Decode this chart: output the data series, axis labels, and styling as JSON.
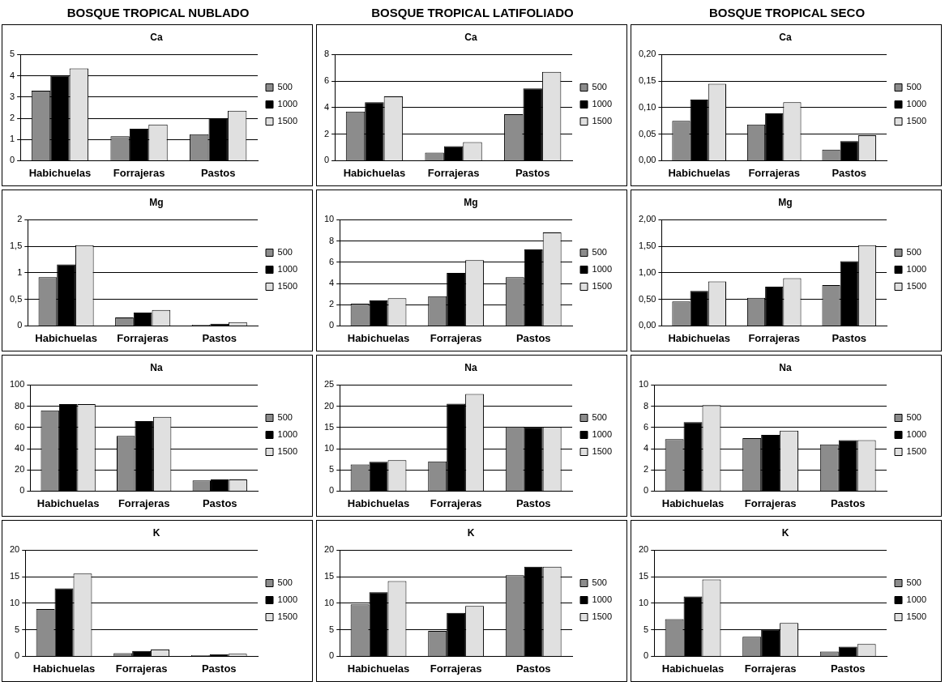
{
  "chart_data": [
    {
      "type": "bar",
      "title": "Ca",
      "annotations": [
        "BOSQUE TROPICAL NUBLADO"
      ],
      "categories": [
        "Habichuelas",
        "Forrajeras",
        "Pastos"
      ],
      "ylim": [
        0,
        5
      ],
      "yticks": [
        0,
        1,
        2,
        3,
        4,
        5
      ],
      "grid": "y",
      "legend": "right",
      "series": [
        {
          "name": "500",
          "color": "#8c8c8c",
          "values": [
            3.3,
            1.15,
            1.25
          ]
        },
        {
          "name": "1000",
          "color": "#000000",
          "values": [
            4.0,
            1.5,
            2.0
          ]
        },
        {
          "name": "1500",
          "color": "#e0e0e0",
          "values": [
            4.35,
            1.7,
            2.35
          ]
        }
      ]
    },
    {
      "type": "bar",
      "title": "Ca",
      "annotations": [
        "BOSQUE TROPICAL LATIFOLIADO"
      ],
      "categories": [
        "Habichuelas",
        "Forrajeras",
        "Pastos"
      ],
      "ylim": [
        0,
        8
      ],
      "yticks": [
        0,
        2,
        4,
        6,
        8
      ],
      "grid": "y",
      "legend": "right",
      "series": [
        {
          "name": "500",
          "color": "#8c8c8c",
          "values": [
            3.7,
            0.6,
            3.5
          ]
        },
        {
          "name": "1000",
          "color": "#000000",
          "values": [
            4.4,
            1.1,
            5.45
          ]
        },
        {
          "name": "1500",
          "color": "#e0e0e0",
          "values": [
            4.85,
            1.4,
            6.7
          ]
        }
      ]
    },
    {
      "type": "bar",
      "title": "Ca",
      "annotations": [
        "BOSQUE TROPICAL SECO"
      ],
      "categories": [
        "Habichuelas",
        "Forrajeras",
        "Pastos"
      ],
      "ylim": [
        0,
        0.2
      ],
      "yticks": [
        {
          "value": 0,
          "label": "0,00"
        },
        {
          "value": 0.05,
          "label": "0,05"
        },
        {
          "value": 0.1,
          "label": "0,10"
        },
        {
          "value": 0.15,
          "label": "0,15"
        },
        {
          "value": 0.2,
          "label": "0,20"
        }
      ],
      "grid": "y",
      "legend": "right",
      "series": [
        {
          "name": "500",
          "color": "#8c8c8c",
          "values": [
            0.075,
            0.068,
            0.021
          ]
        },
        {
          "name": "1000",
          "color": "#000000",
          "values": [
            0.115,
            0.089,
            0.037
          ]
        },
        {
          "name": "1500",
          "color": "#e0e0e0",
          "values": [
            0.145,
            0.11,
            0.048
          ]
        }
      ]
    },
    {
      "type": "bar",
      "title": "Mg",
      "categories": [
        "Habichuelas",
        "Forrajeras",
        "Pastos"
      ],
      "ylim": [
        0,
        2
      ],
      "yticks": [
        0,
        {
          "value": 0.5,
          "label": "0,5"
        },
        1,
        {
          "value": 1.5,
          "label": "1,5"
        },
        2
      ],
      "grid": "y",
      "legend": "right",
      "series": [
        {
          "name": "500",
          "color": "#8c8c8c",
          "values": [
            0.92,
            0.16,
            0.02
          ]
        },
        {
          "name": "1000",
          "color": "#000000",
          "values": [
            1.16,
            0.25,
            0.04
          ]
        },
        {
          "name": "1500",
          "color": "#e0e0e0",
          "values": [
            1.52,
            0.3,
            0.07
          ]
        }
      ]
    },
    {
      "type": "bar",
      "title": "Mg",
      "categories": [
        "Habichuelas",
        "Forrajeras",
        "Pastos"
      ],
      "ylim": [
        0,
        10
      ],
      "yticks": [
        0,
        2,
        4,
        6,
        8,
        10
      ],
      "grid": "y",
      "legend": "right",
      "series": [
        {
          "name": "500",
          "color": "#8c8c8c",
          "values": [
            2.1,
            2.8,
            4.6
          ]
        },
        {
          "name": "1000",
          "color": "#000000",
          "values": [
            2.4,
            5.0,
            7.2
          ]
        },
        {
          "name": "1500",
          "color": "#e0e0e0",
          "values": [
            2.6,
            6.2,
            8.8
          ]
        }
      ]
    },
    {
      "type": "bar",
      "title": "Mg",
      "categories": [
        "Habichuelas",
        "Forrajeras",
        "Pastos"
      ],
      "ylim": [
        0,
        2
      ],
      "yticks": [
        {
          "value": 0,
          "label": "0,00"
        },
        {
          "value": 0.5,
          "label": "0,50"
        },
        {
          "value": 1,
          "label": "1,00"
        },
        {
          "value": 1.5,
          "label": "1,50"
        },
        {
          "value": 2,
          "label": "2,00"
        }
      ],
      "grid": "y",
      "legend": "right",
      "series": [
        {
          "name": "500",
          "color": "#8c8c8c",
          "values": [
            0.46,
            0.53,
            0.77
          ]
        },
        {
          "name": "1000",
          "color": "#000000",
          "values": [
            0.66,
            0.74,
            1.22
          ]
        },
        {
          "name": "1500",
          "color": "#e0e0e0",
          "values": [
            0.84,
            0.9,
            1.52
          ]
        }
      ]
    },
    {
      "type": "bar",
      "title": "Na",
      "categories": [
        "Habichuelas",
        "Forrajeras",
        "Pastos"
      ],
      "ylim": [
        0,
        100
      ],
      "yticks": [
        0,
        20,
        40,
        60,
        80,
        100
      ],
      "grid": "y",
      "legend": "right",
      "series": [
        {
          "name": "500",
          "color": "#8c8c8c",
          "values": [
            76,
            52,
            10
          ]
        },
        {
          "name": "1000",
          "color": "#000000",
          "values": [
            82,
            66,
            11
          ]
        },
        {
          "name": "1500",
          "color": "#e0e0e0",
          "values": [
            82,
            70,
            11
          ]
        }
      ]
    },
    {
      "type": "bar",
      "title": "Na",
      "categories": [
        "Habichuelas",
        "Forrajeras",
        "Pastos"
      ],
      "ylim": [
        0,
        25
      ],
      "yticks": [
        0,
        5,
        10,
        15,
        20,
        25
      ],
      "grid": "y",
      "legend": "right",
      "series": [
        {
          "name": "500",
          "color": "#8c8c8c",
          "values": [
            6.3,
            7.0,
            15.2
          ]
        },
        {
          "name": "1000",
          "color": "#000000",
          "values": [
            6.9,
            20.6,
            15.1
          ]
        },
        {
          "name": "1500",
          "color": "#e0e0e0",
          "values": [
            7.3,
            22.9,
            15.1
          ]
        }
      ]
    },
    {
      "type": "bar",
      "title": "Na",
      "categories": [
        "Habichuelas",
        "Forrajeras",
        "Pastos"
      ],
      "ylim": [
        0,
        10
      ],
      "yticks": [
        0,
        2,
        4,
        6,
        8,
        10
      ],
      "grid": "y",
      "legend": "right",
      "series": [
        {
          "name": "500",
          "color": "#8c8c8c",
          "values": [
            4.9,
            5.0,
            4.4
          ]
        },
        {
          "name": "1000",
          "color": "#000000",
          "values": [
            6.5,
            5.3,
            4.8
          ]
        },
        {
          "name": "1500",
          "color": "#e0e0e0",
          "values": [
            8.1,
            5.7,
            4.8
          ]
        }
      ]
    },
    {
      "type": "bar",
      "title": "K",
      "categories": [
        "Habichuelas",
        "Forrajeras",
        "Pastos"
      ],
      "ylim": [
        0,
        20
      ],
      "yticks": [
        0,
        5,
        10,
        15,
        20
      ],
      "grid": "y",
      "legend": "right",
      "series": [
        {
          "name": "500",
          "color": "#8c8c8c",
          "values": [
            8.9,
            0.6,
            0.2
          ]
        },
        {
          "name": "1000",
          "color": "#000000",
          "values": [
            12.8,
            1.0,
            0.4
          ]
        },
        {
          "name": "1500",
          "color": "#e0e0e0",
          "values": [
            15.6,
            1.3,
            0.5
          ]
        }
      ]
    },
    {
      "type": "bar",
      "title": "K",
      "categories": [
        "Habichuelas",
        "Forrajeras",
        "Pastos"
      ],
      "ylim": [
        0,
        20
      ],
      "yticks": [
        0,
        5,
        10,
        15,
        20
      ],
      "grid": "y",
      "legend": "right",
      "series": [
        {
          "name": "500",
          "color": "#8c8c8c",
          "values": [
            9.8,
            4.8,
            15.3
          ]
        },
        {
          "name": "1000",
          "color": "#000000",
          "values": [
            12.1,
            8.2,
            16.9
          ]
        },
        {
          "name": "1500",
          "color": "#e0e0e0",
          "values": [
            14.2,
            9.5,
            16.9
          ]
        }
      ]
    },
    {
      "type": "bar",
      "title": "K",
      "categories": [
        "Habichuelas",
        "Forrajeras",
        "Pastos"
      ],
      "ylim": [
        0,
        20
      ],
      "yticks": [
        0,
        5,
        10,
        15,
        20
      ],
      "grid": "y",
      "legend": "right",
      "series": [
        {
          "name": "500",
          "color": "#8c8c8c",
          "values": [
            7.0,
            3.7,
            0.9
          ]
        },
        {
          "name": "1000",
          "color": "#000000",
          "values": [
            11.3,
            5.0,
            1.8
          ]
        },
        {
          "name": "1500",
          "color": "#e0e0e0",
          "values": [
            14.5,
            6.3,
            2.3
          ]
        }
      ]
    }
  ]
}
